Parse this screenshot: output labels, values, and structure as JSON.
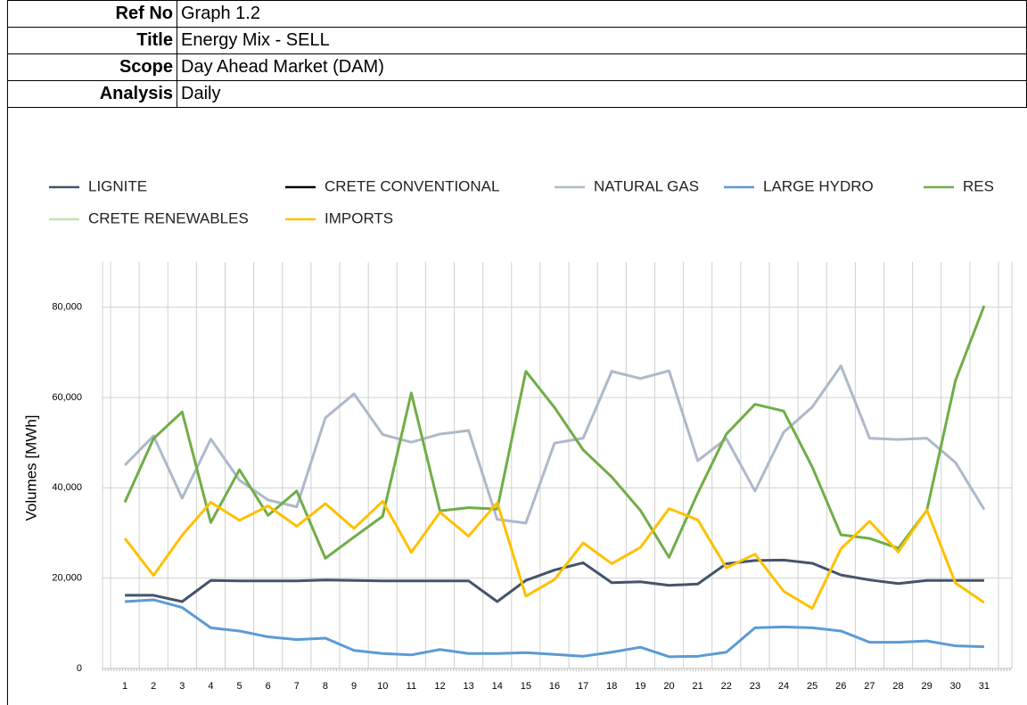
{
  "header": {
    "rows": [
      [
        "Ref No",
        "Graph 1.2"
      ],
      [
        "Title",
        "Energy Mix - SELL"
      ],
      [
        "Scope",
        "Day Ahead Market (DAM)"
      ],
      [
        "Analysis",
        "Daily"
      ]
    ]
  },
  "chart_data": {
    "type": "line",
    "y_label": "Volumes [MWh]",
    "categories": [
      "1",
      "2",
      "3",
      "4",
      "5",
      "6",
      "7",
      "8",
      "9",
      "10",
      "11",
      "12",
      "13",
      "14",
      "15",
      "16",
      "17",
      "18",
      "19",
      "20",
      "21",
      "22",
      "23",
      "24",
      "25",
      "26",
      "27",
      "28",
      "29",
      "30",
      "31"
    ],
    "ylim": [
      0,
      90000
    ],
    "yticks": [
      0,
      {
        "value": 20000,
        "label": "20,000"
      },
      {
        "value": 40000,
        "label": "40,000"
      },
      {
        "value": 60000,
        "label": "60,000"
      },
      {
        "value": 80000,
        "label": "80,000"
      }
    ],
    "grid": true,
    "series": [
      {
        "name": "LIGNITE",
        "color": "#44546a",
        "values": [
          16200,
          16200,
          14800,
          19500,
          19400,
          19400,
          19400,
          19600,
          19500,
          19400,
          19400,
          19400,
          19400,
          14800,
          19500,
          21800,
          23400,
          19000,
          19200,
          18400,
          18700,
          23200,
          23900,
          24000,
          23300,
          20700,
          19600,
          18800,
          19500,
          19500,
          19500
        ]
      },
      {
        "name": "CRETE CONVENTIONAL",
        "color": "#000000",
        "values": [
          null,
          null,
          null,
          null,
          null,
          null,
          null,
          null,
          null,
          null,
          null,
          null,
          null,
          null,
          null,
          null,
          null,
          null,
          null,
          null,
          null,
          null,
          null,
          null,
          null,
          null,
          null,
          null,
          null,
          null,
          null
        ]
      },
      {
        "name": "NATURAL GAS",
        "color": "#adb9ca",
        "values": [
          45000,
          51500,
          37700,
          50800,
          41700,
          37300,
          35800,
          55500,
          60800,
          51800,
          50100,
          51900,
          52700,
          33000,
          32200,
          49900,
          51000,
          65800,
          64200,
          65900,
          46000,
          50900,
          39300,
          52300,
          57900,
          67000,
          51000,
          50700,
          51000,
          45600,
          35200
        ]
      },
      {
        "name": "LARGE HYDRO",
        "color": "#5b9bd5",
        "values": [
          14800,
          15200,
          13500,
          9000,
          8300,
          7000,
          6400,
          6700,
          4000,
          3300,
          3000,
          4200,
          3300,
          3300,
          3500,
          3100,
          2700,
          3600,
          4700,
          2600,
          2700,
          3600,
          9000,
          9200,
          9000,
          8300,
          5800,
          5800,
          6100,
          5000,
          4800
        ]
      },
      {
        "name": "RES",
        "color": "#70ad47",
        "values": [
          36800,
          50900,
          56800,
          32300,
          44000,
          33900,
          39300,
          24400,
          29100,
          33700,
          61000,
          34900,
          35600,
          35300,
          65800,
          57800,
          48400,
          42400,
          35000,
          24600,
          38800,
          51900,
          58500,
          57000,
          44600,
          29600,
          28800,
          26600,
          35000,
          63800,
          80300
        ]
      },
      {
        "name": "CRETE RENEWABLES",
        "color": "#c5e0b4",
        "values": [
          null,
          null,
          null,
          null,
          null,
          null,
          null,
          null,
          null,
          null,
          null,
          null,
          null,
          null,
          null,
          null,
          null,
          null,
          null,
          null,
          null,
          null,
          null,
          null,
          null,
          null,
          null,
          null,
          null,
          null,
          null
        ]
      },
      {
        "name": "IMPORTS",
        "color": "#ffc000",
        "values": [
          28800,
          20600,
          29500,
          36800,
          32800,
          36000,
          31500,
          36500,
          31000,
          37000,
          25700,
          34600,
          29300,
          36700,
          16000,
          19700,
          27800,
          23200,
          26800,
          35400,
          32900,
          22300,
          25300,
          17100,
          13300,
          26500,
          32600,
          25800,
          35100,
          18900,
          14600
        ]
      }
    ]
  }
}
